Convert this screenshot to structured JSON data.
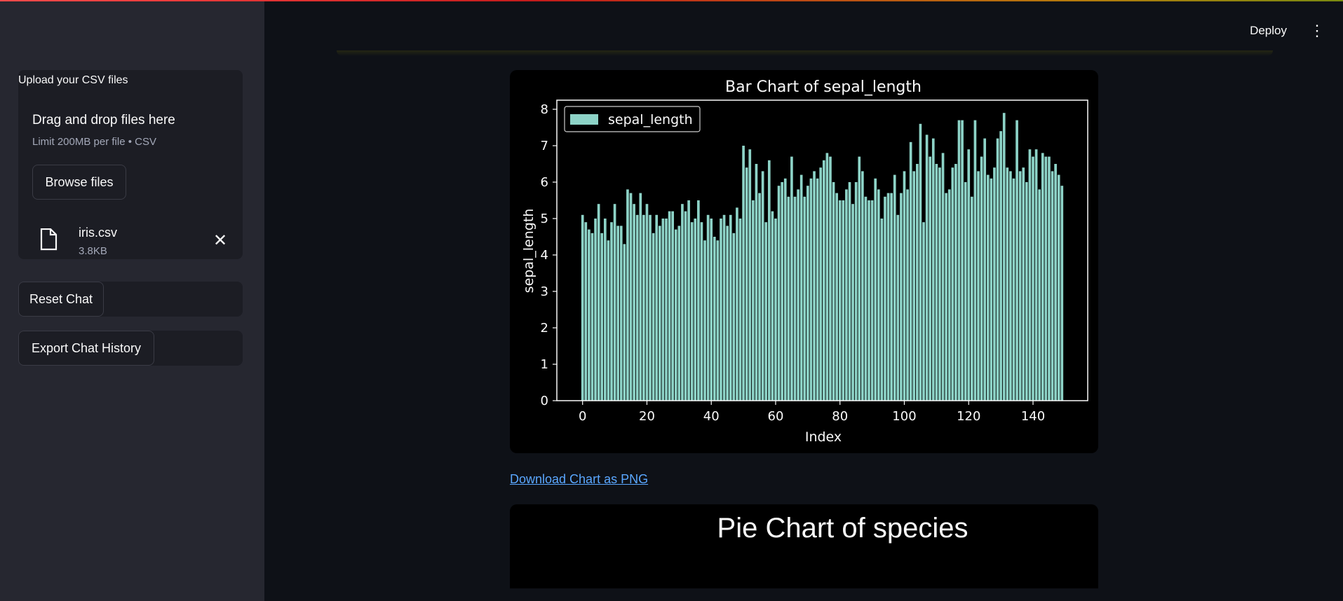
{
  "header": {
    "deploy_label": "Deploy",
    "menu_icon": "more-vertical-icon"
  },
  "sidebar": {
    "upload_label": "Upload your CSV files",
    "dropzone_title": "Drag and drop files here",
    "dropzone_limit": "Limit 200MB per file • CSV",
    "browse_label": "Browse files",
    "file": {
      "name": "iris.csv",
      "size": "3.8KB"
    },
    "reset_label": "Reset Chat",
    "export_label": "Export Chat History"
  },
  "main": {
    "download_link": "Download Chart as PNG",
    "pie_title": "Pie Chart of species"
  },
  "colors": {
    "bar": "#8dd3c7",
    "accent_link": "#5aa7ff",
    "sidebar_bg": "#262730",
    "main_bg": "#0e1117"
  },
  "chart_data": {
    "type": "bar",
    "title": "Bar Chart of sepal_length",
    "xlabel": "Index",
    "ylabel": "sepal_length",
    "xlim": [
      -8,
      157
    ],
    "ylim": [
      0,
      8.25
    ],
    "xticks": [
      0,
      20,
      40,
      60,
      80,
      100,
      120,
      140
    ],
    "yticks": [
      0,
      1,
      2,
      3,
      4,
      5,
      6,
      7,
      8
    ],
    "legend": "upper-left",
    "series": [
      {
        "name": "sepal_length",
        "values": [
          5.1,
          4.9,
          4.7,
          4.6,
          5.0,
          5.4,
          4.6,
          5.0,
          4.4,
          4.9,
          5.4,
          4.8,
          4.8,
          4.3,
          5.8,
          5.7,
          5.4,
          5.1,
          5.7,
          5.1,
          5.4,
          5.1,
          4.6,
          5.1,
          4.8,
          5.0,
          5.0,
          5.2,
          5.2,
          4.7,
          4.8,
          5.4,
          5.2,
          5.5,
          4.9,
          5.0,
          5.5,
          4.9,
          4.4,
          5.1,
          5.0,
          4.5,
          4.4,
          5.0,
          5.1,
          4.8,
          5.1,
          4.6,
          5.3,
          5.0,
          7.0,
          6.4,
          6.9,
          5.5,
          6.5,
          5.7,
          6.3,
          4.9,
          6.6,
          5.2,
          5.0,
          5.9,
          6.0,
          6.1,
          5.6,
          6.7,
          5.6,
          5.8,
          6.2,
          5.6,
          5.9,
          6.1,
          6.3,
          6.1,
          6.4,
          6.6,
          6.8,
          6.7,
          6.0,
          5.7,
          5.5,
          5.5,
          5.8,
          6.0,
          5.4,
          6.0,
          6.7,
          6.3,
          5.6,
          5.5,
          5.5,
          6.1,
          5.8,
          5.0,
          5.6,
          5.7,
          5.7,
          6.2,
          5.1,
          5.7,
          6.3,
          5.8,
          7.1,
          6.3,
          6.5,
          7.6,
          4.9,
          7.3,
          6.7,
          7.2,
          6.5,
          6.4,
          6.8,
          5.7,
          5.8,
          6.4,
          6.5,
          7.7,
          7.7,
          6.0,
          6.9,
          5.6,
          7.7,
          6.3,
          6.7,
          7.2,
          6.2,
          6.1,
          6.4,
          7.2,
          7.4,
          7.9,
          6.4,
          6.3,
          6.1,
          7.7,
          6.3,
          6.4,
          6.0,
          6.9,
          6.7,
          6.9,
          5.8,
          6.8,
          6.7,
          6.7,
          6.3,
          6.5,
          6.2,
          5.9
        ]
      }
    ]
  }
}
